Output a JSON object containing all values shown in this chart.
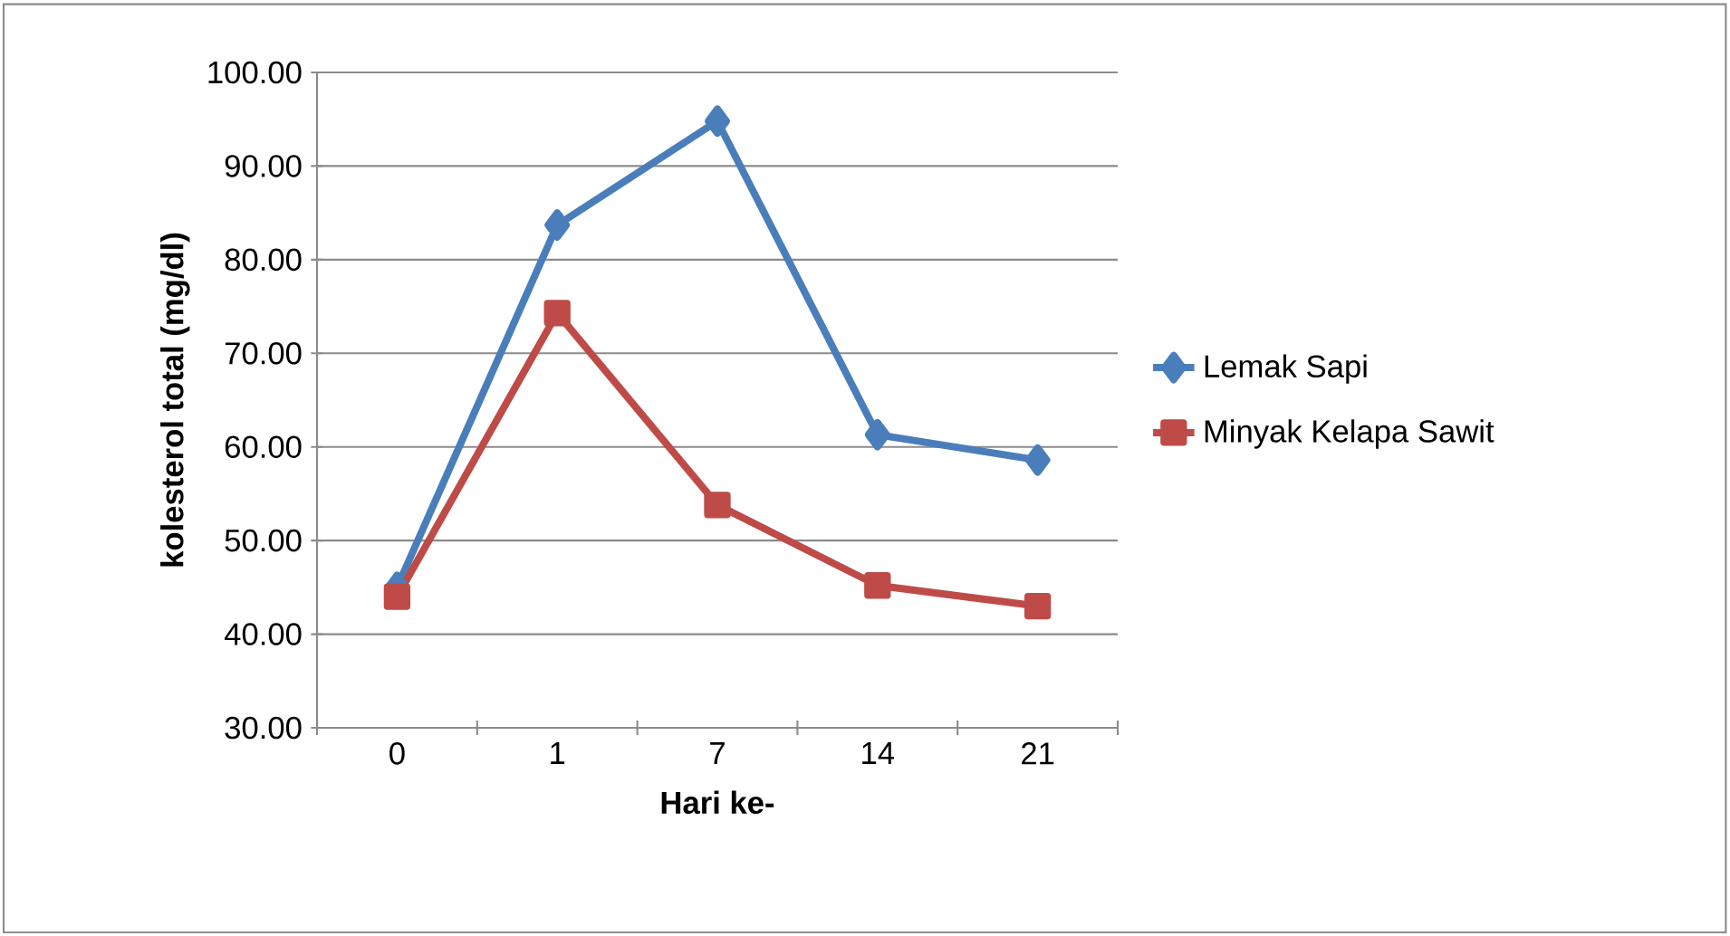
{
  "chart_data": {
    "type": "line",
    "xlabel": "Hari ke-",
    "ylabel": "kolesterol total (mg/dl)",
    "categories": [
      "0",
      "1",
      "7",
      "14",
      "21"
    ],
    "series": [
      {
        "name": "Lemak Sapi",
        "color": "#4a7ebb",
        "marker": "diamond",
        "values": [
          45.0,
          83.7,
          94.8,
          61.3,
          58.6
        ]
      },
      {
        "name": "Minyak Kelapa Sawit",
        "color": "#be4b48",
        "marker": "square",
        "values": [
          44.0,
          74.3,
          53.8,
          45.2,
          43.0
        ]
      }
    ],
    "ylim": [
      30,
      100
    ],
    "yticks": [
      {
        "value": 30,
        "label": "30.00"
      },
      {
        "value": 40,
        "label": "40.00"
      },
      {
        "value": 50,
        "label": "50.00"
      },
      {
        "value": 60,
        "label": "60.00"
      },
      {
        "value": 70,
        "label": "70.00"
      },
      {
        "value": 80,
        "label": "80.00"
      },
      {
        "value": 90,
        "label": "90.00"
      },
      {
        "value": 100,
        "label": "100.00"
      }
    ],
    "grid": "y",
    "legend": "right",
    "line_style": "solid"
  }
}
